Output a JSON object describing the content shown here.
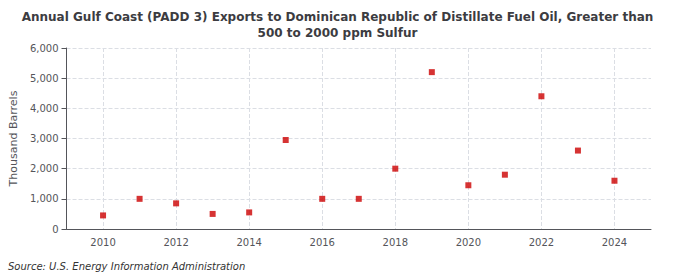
{
  "chart_data": {
    "type": "scatter",
    "title": "Annual Gulf Coast (PADD 3) Exports to Dominican Republic of Distillate Fuel Oil, Greater than\n500 to 2000 ppm Sulfur",
    "ylabel": "Thousand Barrels",
    "annotation": "Source: U.S. Energy Information Administration",
    "x": [
      2010,
      2011,
      2012,
      2013,
      2014,
      2015,
      2016,
      2017,
      2018,
      2019,
      2020,
      2021,
      2022,
      2023,
      2024
    ],
    "values": [
      450,
      1000,
      850,
      500,
      550,
      2950,
      1000,
      1000,
      2000,
      5200,
      1450,
      1800,
      4400,
      2600,
      1600
    ],
    "color": "#cc0000",
    "marker": "square",
    "xlim": [
      2009,
      2025
    ],
    "xticks": [
      2010,
      2012,
      2014,
      2016,
      2018,
      2020,
      2022,
      2024
    ],
    "ylim": [
      0,
      6000
    ],
    "yticks": [
      0,
      {
        "value": 1000,
        "label": "1,000"
      },
      {
        "value": 2000,
        "label": "2,000"
      },
      {
        "value": 3000,
        "label": "3,000"
      },
      {
        "value": 4000,
        "label": "4,000"
      },
      {
        "value": 5000,
        "label": "5,000"
      },
      {
        "value": 6000,
        "label": "6,000"
      }
    ],
    "grid": true
  }
}
